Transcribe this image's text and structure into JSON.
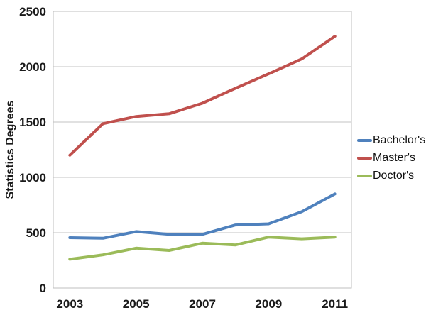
{
  "colors": {
    "background": "#ffffff",
    "gridline": "#c3c3c3",
    "plot_border": "#bfbfbf",
    "tick_text": "#1a1a1a"
  },
  "chart_data": {
    "type": "line",
    "title": "",
    "xlabel": "",
    "ylabel": "Statistics Degrees",
    "x": [
      2003,
      2004,
      2005,
      2006,
      2007,
      2008,
      2009,
      2010,
      2011
    ],
    "x_ticks_shown": [
      "2003",
      "2005",
      "2007",
      "2009",
      "2011"
    ],
    "ylim": [
      0,
      2500
    ],
    "y_ticks": [
      0,
      500,
      1000,
      1500,
      2000,
      2500
    ],
    "grid": "horizontal gridlines at every y tick",
    "legend_position": "right",
    "series": [
      {
        "name": "Bachelor's",
        "color": "#4F81BD",
        "values": [
          455,
          450,
          510,
          485,
          485,
          570,
          580,
          690,
          850
        ]
      },
      {
        "name": "Master's",
        "color": "#C0504D",
        "values": [
          1200,
          1485,
          1550,
          1575,
          1670,
          1805,
          1935,
          2070,
          2275
        ]
      },
      {
        "name": "Doctor's",
        "color": "#9BBB59",
        "values": [
          260,
          300,
          360,
          340,
          405,
          390,
          460,
          445,
          460
        ]
      }
    ]
  }
}
